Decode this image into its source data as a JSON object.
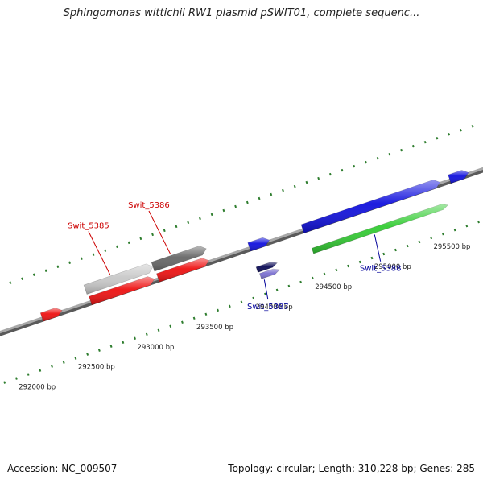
{
  "title": "Sphingomonas wittichii RW1 plasmid pSWIT01, complete sequenc...",
  "footer": {
    "accession": "Accession: NC_009507",
    "topology": "Topology: circular; Length: 310,228 bp; Genes: 285"
  },
  "colors": {
    "backbone": "#8a8a8a",
    "tick": "#2e7d2e",
    "forward_label": "#cc0000",
    "reverse_label": "#000099",
    "red": "#ee1111",
    "grey_light": "#c8c8c8",
    "grey_dark": "#666666",
    "blue": "#1111dd",
    "navy": "#0a0a55",
    "lavender": "#7a6fd0",
    "green": "#33cc33"
  },
  "scale_labels": [
    {
      "position": 292000,
      "text": "292000 bp"
    },
    {
      "position": 292500,
      "text": "292500 bp"
    },
    {
      "position": 293000,
      "text": "293000 bp"
    },
    {
      "position": 293500,
      "text": "293500 bp"
    },
    {
      "position": 294000,
      "text": "294000 bp"
    },
    {
      "position": 294500,
      "text": "294500 bp"
    },
    {
      "position": 295000,
      "text": "295000 bp"
    },
    {
      "position": 295500,
      "text": "295500 bp"
    }
  ],
  "genes": [
    {
      "label": "",
      "color": "red",
      "strand": "forward",
      "track": 1,
      "start": 292200,
      "end": 292370
    },
    {
      "label": "Swit_5385",
      "color": "grey_light",
      "strand": "forward",
      "track": 2,
      "start": 292600,
      "end": 293170
    },
    {
      "label": "",
      "color": "red",
      "strand": "forward",
      "track": 1,
      "start": 292610,
      "end": 293150
    },
    {
      "label": "Swit_5386",
      "color": "grey_dark",
      "strand": "forward",
      "track": 2,
      "start": 293170,
      "end": 293620
    },
    {
      "label": "",
      "color": "red",
      "strand": "forward",
      "track": 1,
      "start": 293180,
      "end": 293610
    },
    {
      "label": "",
      "color": "blue",
      "strand": "forward",
      "track": 1,
      "start": 293950,
      "end": 294120
    },
    {
      "label": "",
      "color": "navy",
      "strand": "reverse",
      "track": 1,
      "start": 293950,
      "end": 294120
    },
    {
      "label": "Swit_5387",
      "color": "lavender",
      "strand": "reverse",
      "track": 2,
      "start": 293960,
      "end": 294120
    },
    {
      "label": "",
      "color": "blue",
      "strand": "forward",
      "track": 1,
      "start": 294400,
      "end": 295560
    },
    {
      "label": "Swit_5388",
      "color": "green",
      "strand": "reverse",
      "track": 1,
      "start": 294420,
      "end": 295560
    },
    {
      "label": "",
      "color": "blue",
      "strand": "forward",
      "track": 1,
      "start": 295640,
      "end": 295800
    }
  ]
}
